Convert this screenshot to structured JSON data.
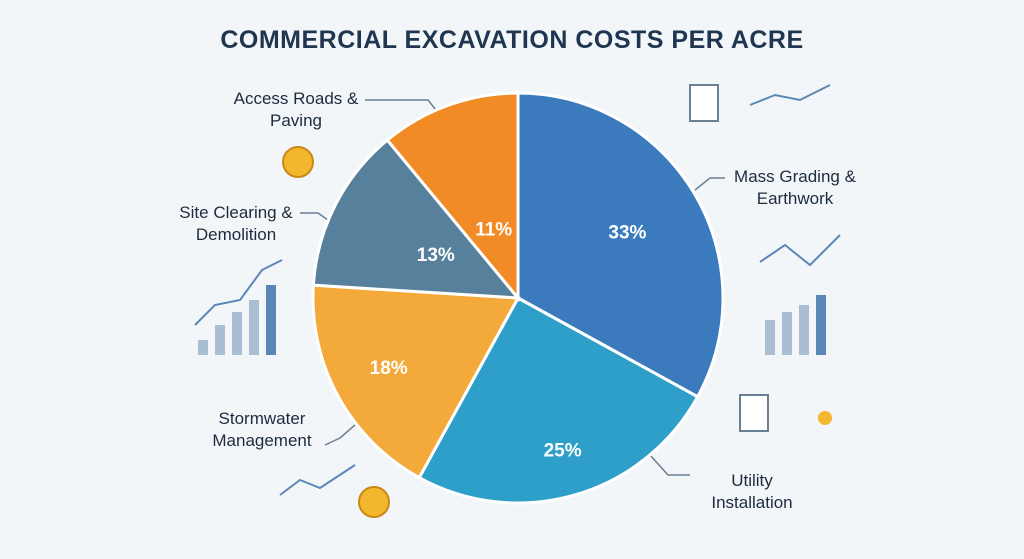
{
  "chart_data": {
    "type": "pie",
    "title": "COMMERCIAL EXCAVATION COSTS PER ACRE",
    "categories": [
      "Mass Grading & Earthwork",
      "Utility Installation",
      "Stormwater Management",
      "Site Clearing & Demolition",
      "Access Roads & Paving"
    ],
    "values": [
      33,
      25,
      18,
      13,
      11
    ],
    "value_labels": [
      "33%",
      "25%",
      "18%",
      "13%",
      "11%"
    ],
    "colors": [
      "#3b7bbd",
      "#2d9fc9",
      "#f4aa3a",
      "#56809c",
      "#f18b25"
    ]
  }
}
